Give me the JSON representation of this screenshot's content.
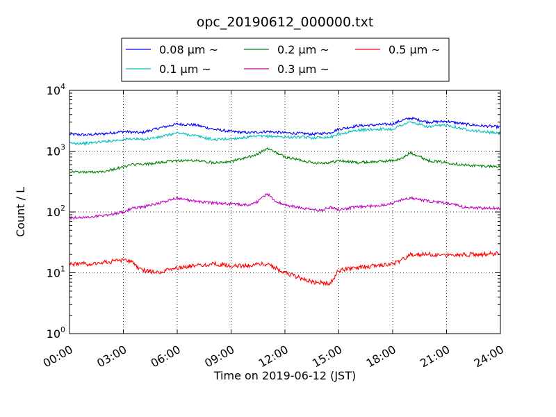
{
  "chart_data": {
    "type": "line",
    "title": "opc_20190612_000000.txt",
    "xlabel": "Time on 2019-06-12 (JST)",
    "ylabel": "Count / L",
    "yscale": "log",
    "ylim": [
      1,
      10000
    ],
    "xlim": [
      "00:00",
      "24:00"
    ],
    "x_ticks": [
      "00:00",
      "03:00",
      "06:00",
      "09:00",
      "12:00",
      "15:00",
      "18:00",
      "21:00",
      "24:00"
    ],
    "y_ticks": [
      {
        "base": "10",
        "exp": "0"
      },
      {
        "base": "10",
        "exp": "1"
      },
      {
        "base": "10",
        "exp": "2"
      },
      {
        "base": "10",
        "exp": "3"
      },
      {
        "base": "10",
        "exp": "4"
      }
    ],
    "grid": true,
    "legend_position": "top",
    "x_hours": [
      0,
      1,
      2,
      3,
      3.5,
      4,
      5,
      6,
      7,
      8,
      9,
      10,
      10.5,
      11,
      11.5,
      12,
      13,
      13.5,
      14,
      14.5,
      15,
      16,
      17,
      18,
      18.5,
      19,
      20,
      21,
      22,
      23,
      24
    ],
    "series": [
      {
        "name": "0.08 μm ~",
        "color": "#0000ff",
        "values": [
          1900,
          1850,
          1950,
          2100,
          2050,
          2000,
          2400,
          2800,
          2700,
          2300,
          2100,
          2000,
          2050,
          2100,
          2050,
          2000,
          1950,
          1900,
          1950,
          2000,
          2300,
          2600,
          2700,
          2800,
          3200,
          3500,
          3000,
          3100,
          2800,
          2600,
          2500
        ]
      },
      {
        "name": "0.1 μm ~",
        "color": "#00bfbf",
        "values": [
          1350,
          1350,
          1450,
          1550,
          1600,
          1550,
          1700,
          2000,
          1800,
          1550,
          1600,
          1700,
          1750,
          1750,
          1750,
          1700,
          1700,
          1650,
          1700,
          1700,
          1900,
          2200,
          2300,
          2300,
          2700,
          3000,
          2500,
          2700,
          2300,
          2100,
          1950
        ]
      },
      {
        "name": "0.2 μm ~",
        "color": "#007f00",
        "values": [
          460,
          450,
          470,
          550,
          600,
          600,
          650,
          700,
          700,
          650,
          680,
          800,
          900,
          1100,
          950,
          800,
          700,
          650,
          640,
          650,
          700,
          650,
          670,
          700,
          750,
          950,
          700,
          650,
          590,
          570,
          560
        ]
      },
      {
        "name": "0.3 μm ~",
        "color": "#bf00bf",
        "values": [
          80,
          82,
          88,
          100,
          115,
          120,
          140,
          170,
          150,
          140,
          135,
          130,
          150,
          200,
          150,
          130,
          115,
          110,
          105,
          120,
          110,
          120,
          125,
          140,
          160,
          170,
          150,
          140,
          120,
          115,
          115
        ]
      },
      {
        "name": "0.5 μm ~",
        "color": "#ff0000",
        "values": [
          14,
          14,
          15,
          16,
          15,
          11,
          10,
          12,
          13,
          14,
          13,
          13,
          14,
          14,
          12,
          10,
          8,
          7,
          7,
          6.5,
          11,
          12,
          13,
          14,
          16,
          20,
          20,
          20,
          20,
          20,
          21
        ]
      }
    ]
  }
}
